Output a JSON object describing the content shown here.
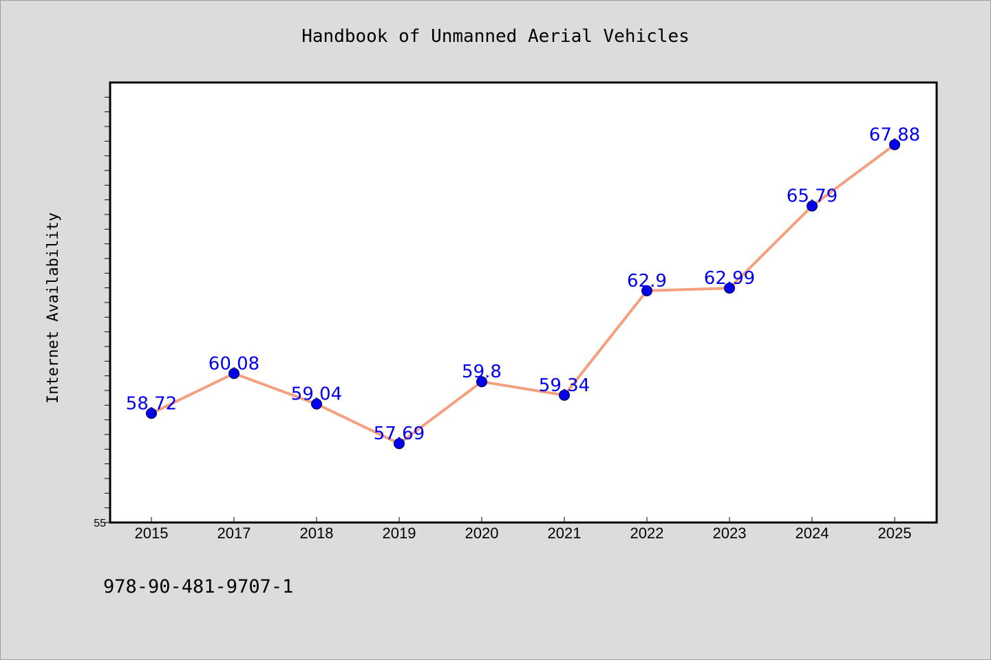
{
  "chart_data": {
    "type": "line",
    "title": "Handbook of Unmanned Aerial Vehicles",
    "ylabel": "Internet Availability",
    "xlabel": "",
    "categories": [
      "2015",
      "2017",
      "2018",
      "2019",
      "2020",
      "2021",
      "2022",
      "2023",
      "2024",
      "2025"
    ],
    "series": [
      {
        "values": [
          58.72,
          60.08,
          59.04,
          57.69,
          59.8,
          59.34,
          62.9,
          62.99,
          65.79,
          67.88
        ],
        "data_labels": [
          "58.72",
          "60.08",
          "59.04",
          "57.69",
          "59.8",
          "59.34",
          "62.9",
          "62.99",
          "65.79",
          "67.88"
        ]
      }
    ],
    "ylim": [
      55,
      70
    ],
    "y_tick_labels": [
      "55"
    ],
    "grid": false,
    "line_color": "#f4a07f",
    "marker_color": "#0000ee",
    "label_color": "#0000ee",
    "plot_background": "#ffffff",
    "page_background": "#dcdcdc"
  },
  "footer": {
    "isbn": "978-90-481-9707-1"
  }
}
